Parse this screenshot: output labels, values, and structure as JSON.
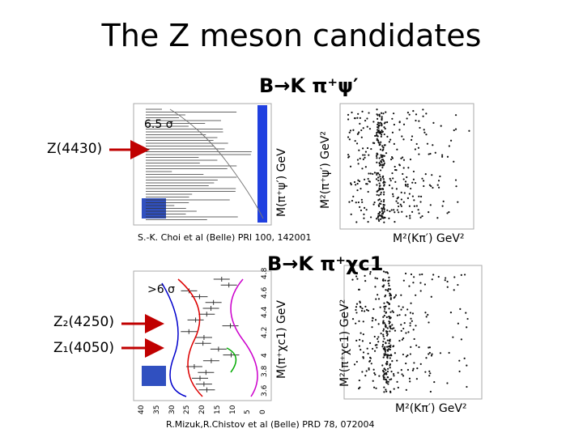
{
  "title": "The Z meson candidates",
  "panel_1": {
    "heading": "B→K π⁺ψ′",
    "significance": "6.5 σ",
    "state": "Z(4430)",
    "hist_axis": "M(π⁺ψ′) GeV",
    "dalitz_y_axis": "M²(π⁺ψ′) GeV²",
    "dalitz_x_axis": "M²(Kπ′) GeV²",
    "reference": "S.-K. Choi et al (Belle) PRl 100, 142001"
  },
  "panel_2": {
    "heading": "B→K π⁺χc1",
    "significance": ">6 σ",
    "states": [
      "Z₂(4250)",
      "Z₁(4050)"
    ],
    "hist_axis": "M(π⁺χc1) GeV",
    "hist_ticks": [
      "3.6",
      "3.8",
      "4",
      "4.2",
      "4.4",
      "4.6",
      "4.8"
    ],
    "hist_count_ticks": [
      "40",
      "35",
      "30",
      "25",
      "20",
      "15",
      "10",
      "5",
      "0"
    ],
    "dalitz_y_axis": "M²(π⁺χc1) GeV²",
    "dalitz_x_axis": "M²(Kπ′) GeV²",
    "reference": "R.Mizuk,R.Chistov et al (Belle) PRD 78, 072004"
  }
}
